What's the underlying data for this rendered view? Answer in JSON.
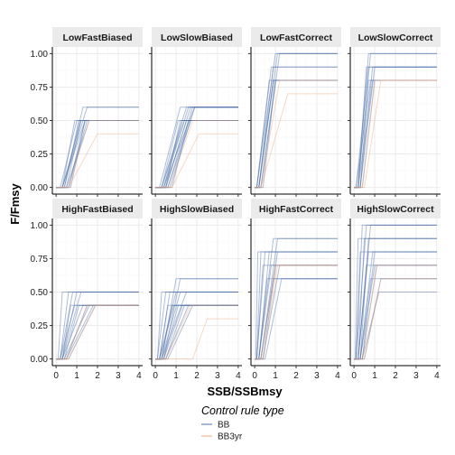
{
  "chart_data": {
    "type": "line",
    "facet_layout": "4 columns x 2 rows",
    "x_axis_label": "SSB/SSBmsy",
    "y_axis_label": "F/Fmsy",
    "x_range": [
      0,
      4
    ],
    "y_range": [
      0,
      1
    ],
    "x_ticks": [
      "0",
      "1",
      "2",
      "3",
      "4"
    ],
    "y_ticks": [
      "0.00",
      "0.25",
      "0.50",
      "0.75",
      "1.00"
    ],
    "grid": true,
    "legend": {
      "title": "Control rule type",
      "position": "bottom",
      "entries": [
        {
          "label": "BB",
          "color": "#4c6fa8"
        },
        {
          "label": "BB3yr",
          "color": "#f2a97e"
        }
      ]
    },
    "series_style": {
      "line_alpha": 0.45
    },
    "panels": [
      {
        "title": "LowFastBiased",
        "bb": [
          [
            0.3,
            1.5,
            0.6
          ],
          [
            0.3,
            1.2,
            0.5
          ],
          [
            0.3,
            1.4,
            0.5
          ],
          [
            0.2,
            1.0,
            0.5
          ],
          [
            0.5,
            1.2,
            0.5
          ],
          [
            0.4,
            1.3,
            0.6
          ],
          [
            0.6,
            1.5,
            0.5
          ],
          [
            0.4,
            1.1,
            0.5
          ],
          [
            0.7,
            1.4,
            0.5
          ],
          [
            0.5,
            1.6,
            0.5
          ],
          [
            0.6,
            1.4,
            0.5
          ],
          [
            0.3,
            0.9,
            0.5
          ]
        ],
        "bb3yr": [
          [
            0.6,
            2.0,
            0.4
          ],
          [
            0.6,
            1.6,
            0.5
          ]
        ]
      },
      {
        "title": "LowSlowBiased",
        "bb": [
          [
            0.2,
            1.2,
            0.6
          ],
          [
            0.3,
            1.5,
            0.6
          ],
          [
            0.4,
            1.6,
            0.6
          ],
          [
            0.5,
            1.7,
            0.6
          ],
          [
            0.3,
            1.4,
            0.5
          ],
          [
            0.6,
            1.8,
            0.6
          ],
          [
            0.4,
            1.3,
            0.5
          ],
          [
            0.7,
            1.9,
            0.6
          ],
          [
            0.5,
            1.5,
            0.5
          ],
          [
            0.3,
            1.1,
            0.5
          ],
          [
            0.6,
            1.7,
            0.5
          ],
          [
            0.8,
            1.6,
            0.5
          ],
          [
            0.4,
            1.9,
            0.6
          ],
          [
            0.5,
            1.2,
            0.5
          ]
        ],
        "bb3yr": [
          [
            0.8,
            2.1,
            0.4
          ],
          [
            0.7,
            1.8,
            0.5
          ]
        ]
      },
      {
        "title": "LowFastCorrect",
        "bb": [
          [
            0.1,
            0.8,
            0.9
          ],
          [
            0.2,
            0.9,
            0.9
          ],
          [
            0.1,
            1.0,
            1.0
          ],
          [
            0.2,
            1.1,
            1.0
          ],
          [
            0.3,
            1.2,
            1.0
          ],
          [
            0.2,
            0.9,
            0.8
          ],
          [
            0.1,
            0.7,
            0.8
          ],
          [
            0.3,
            1.0,
            0.8
          ],
          [
            0.4,
            1.0,
            0.8
          ],
          [
            0.2,
            0.9,
            0.8
          ]
        ],
        "bb3yr": [
          [
            0.3,
            1.6,
            0.7
          ],
          [
            0.3,
            1.2,
            0.8
          ]
        ]
      },
      {
        "title": "LowSlowCorrect",
        "bb": [
          [
            0.1,
            0.7,
            0.9
          ],
          [
            0.2,
            0.8,
            1.0
          ],
          [
            0.2,
            0.6,
            0.9
          ],
          [
            0.3,
            0.9,
            0.9
          ],
          [
            0.1,
            0.8,
            0.8
          ],
          [
            0.2,
            0.9,
            0.8
          ],
          [
            0.3,
            0.7,
            0.8
          ],
          [
            0.4,
            1.0,
            0.8
          ],
          [
            0.3,
            1.0,
            0.9
          ],
          [
            0.2,
            0.7,
            1.0
          ]
        ],
        "bb3yr": [
          [
            0.5,
            1.3,
            0.8
          ],
          [
            0.4,
            1.0,
            0.8
          ]
        ]
      },
      {
        "title": "HighFastBiased",
        "bb": [
          [
            0.1,
            0.3,
            0.5
          ],
          [
            0.2,
            0.6,
            0.5
          ],
          [
            0.2,
            0.8,
            0.5
          ],
          [
            0.3,
            1.0,
            0.5
          ],
          [
            0.3,
            1.2,
            0.5
          ],
          [
            0.4,
            1.1,
            0.4
          ],
          [
            0.5,
            1.5,
            0.4
          ],
          [
            0.3,
            1.3,
            0.4
          ],
          [
            0.2,
            0.9,
            0.4
          ],
          [
            0.5,
            1.8,
            0.4
          ],
          [
            0.4,
            1.6,
            0.4
          ],
          [
            0.3,
            0.7,
            0.4
          ],
          [
            0.6,
            1.9,
            0.4
          ]
        ],
        "bb3yr": [
          [
            0.6,
            1.9,
            0.4
          ],
          [
            0.5,
            1.5,
            0.4
          ]
        ]
      },
      {
        "title": "HighSlowBiased",
        "bb": [
          [
            0.1,
            0.3,
            0.5
          ],
          [
            0.1,
            0.5,
            0.5
          ],
          [
            0.2,
            0.7,
            0.5
          ],
          [
            0.3,
            1.0,
            0.6
          ],
          [
            0.4,
            1.2,
            0.6
          ],
          [
            0.3,
            1.5,
            0.5
          ],
          [
            0.2,
            0.9,
            0.4
          ],
          [
            0.4,
            1.3,
            0.4
          ],
          [
            0.5,
            1.6,
            0.4
          ],
          [
            0.3,
            0.8,
            0.4
          ],
          [
            0.2,
            0.6,
            0.4
          ],
          [
            0.4,
            1.1,
            0.4
          ],
          [
            0.6,
            1.8,
            0.4
          ],
          [
            0.5,
            1.4,
            0.4
          ],
          [
            0.3,
            1.2,
            0.5
          ],
          [
            0.2,
            1.0,
            0.5
          ]
        ],
        "bb3yr": [
          [
            0.5,
            1.7,
            0.4
          ],
          [
            1.8,
            2.5,
            0.3
          ]
        ]
      },
      {
        "title": "HighFastCorrect",
        "bb": [
          [
            0.05,
            0.15,
            0.8
          ],
          [
            0.1,
            0.3,
            0.8
          ],
          [
            0.1,
            0.5,
            0.8
          ],
          [
            0.2,
            0.7,
            0.8
          ],
          [
            0.2,
            0.9,
            0.9
          ],
          [
            0.3,
            1.1,
            0.9
          ],
          [
            0.2,
            0.8,
            0.7
          ],
          [
            0.3,
            1.0,
            0.7
          ],
          [
            0.4,
            1.2,
            0.7
          ],
          [
            0.3,
            0.9,
            0.6
          ],
          [
            0.5,
            1.3,
            0.6
          ],
          [
            0.2,
            0.6,
            0.6
          ],
          [
            0.4,
            1.1,
            0.8
          ],
          [
            0.1,
            0.4,
            0.7
          ]
        ],
        "bb3yr": [
          [
            0.3,
            1.0,
            0.7
          ],
          [
            0.4,
            1.1,
            0.7
          ]
        ]
      },
      {
        "title": "HighSlowCorrect",
        "bb": [
          [
            0.05,
            0.2,
            0.9
          ],
          [
            0.1,
            0.4,
            1.0
          ],
          [
            0.1,
            0.6,
            1.0
          ],
          [
            0.2,
            0.8,
            1.0
          ],
          [
            0.2,
            0.5,
            0.9
          ],
          [
            0.3,
            0.9,
            0.8
          ],
          [
            0.2,
            0.7,
            0.8
          ],
          [
            0.3,
            1.0,
            0.7
          ],
          [
            0.4,
            1.1,
            0.7
          ],
          [
            0.3,
            0.8,
            0.6
          ],
          [
            0.5,
            1.3,
            0.6
          ],
          [
            0.4,
            1.2,
            0.5
          ],
          [
            0.1,
            0.3,
            0.8
          ],
          [
            0.2,
            0.6,
            0.7
          ],
          [
            0.3,
            0.7,
            0.9
          ],
          [
            0.4,
            1.0,
            0.8
          ]
        ],
        "bb3yr": [
          [
            0.4,
            1.1,
            0.7
          ],
          [
            0.5,
            1.3,
            0.6
          ]
        ]
      }
    ]
  }
}
